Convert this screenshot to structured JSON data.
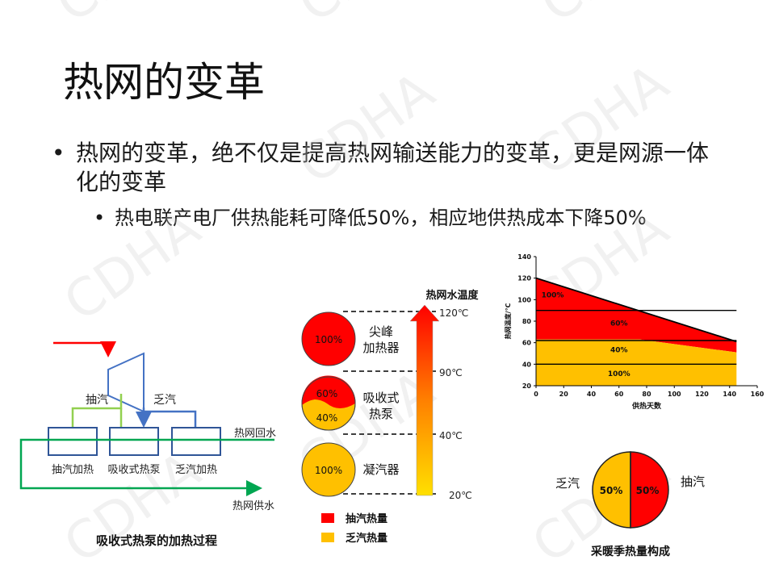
{
  "title": "热网的变革",
  "bullet1": "热网的变革，绝不仅是提高热网输送能力的变革，更是网源一体化的变革",
  "bullet2": "热电联产电厂供热能耗可降低50%，相应地供热成本下降50%",
  "watermark": "CDHA",
  "process": {
    "extraction_label": "抽汽",
    "exhaust_label": "乏汽",
    "return_label": "热网回水",
    "supply_label": "热网供水",
    "boxes": [
      "抽汽加热",
      "吸收式热泵",
      "乏汽加热"
    ],
    "caption": "吸收式热泵的加热过程"
  },
  "stages": {
    "axis_title": "热网水温度",
    "temps": [
      "120℃",
      "90℃",
      "40℃",
      "20℃"
    ],
    "peak": {
      "name": "尖峰\n加热器",
      "label": "100%"
    },
    "pump": {
      "name": "吸收式\n热泵",
      "top": "60%",
      "bottom": "40%"
    },
    "condenser": {
      "name": "凝汽器",
      "label": "100%"
    },
    "legend": [
      {
        "label": "抽汽热量",
        "color": "#ff0000"
      },
      {
        "label": "乏汽热量",
        "color": "#ffc000"
      }
    ]
  },
  "chart_data": {
    "type": "area",
    "xlabel": "供热天数",
    "ylabel": "热网温度/℃",
    "xlim": [
      0,
      160
    ],
    "ylim": [
      20,
      140
    ],
    "xticks": [
      0,
      20,
      40,
      60,
      80,
      100,
      120,
      140,
      160
    ],
    "yticks": [
      20,
      40,
      60,
      80,
      100,
      120,
      140
    ],
    "supply_temp": [
      [
        0,
        120
      ],
      [
        145,
        61
      ]
    ],
    "band_top_40pct": [
      [
        0,
        63
      ],
      [
        75,
        63
      ],
      [
        145,
        51
      ]
    ],
    "lines": [
      90,
      62,
      40
    ],
    "band_labels": [
      "100%",
      "60%",
      "40%",
      "100%"
    ]
  },
  "pie": {
    "left_label": "乏汽",
    "right_label": "抽汽",
    "left_value": "50%",
    "right_value": "50%",
    "caption": "采暖季热量构成"
  },
  "colors": {
    "red": "#ff0000",
    "yellow": "#ffc000",
    "green": "#00a651",
    "blue": "#4472c4",
    "lightgreen": "#92d050"
  }
}
